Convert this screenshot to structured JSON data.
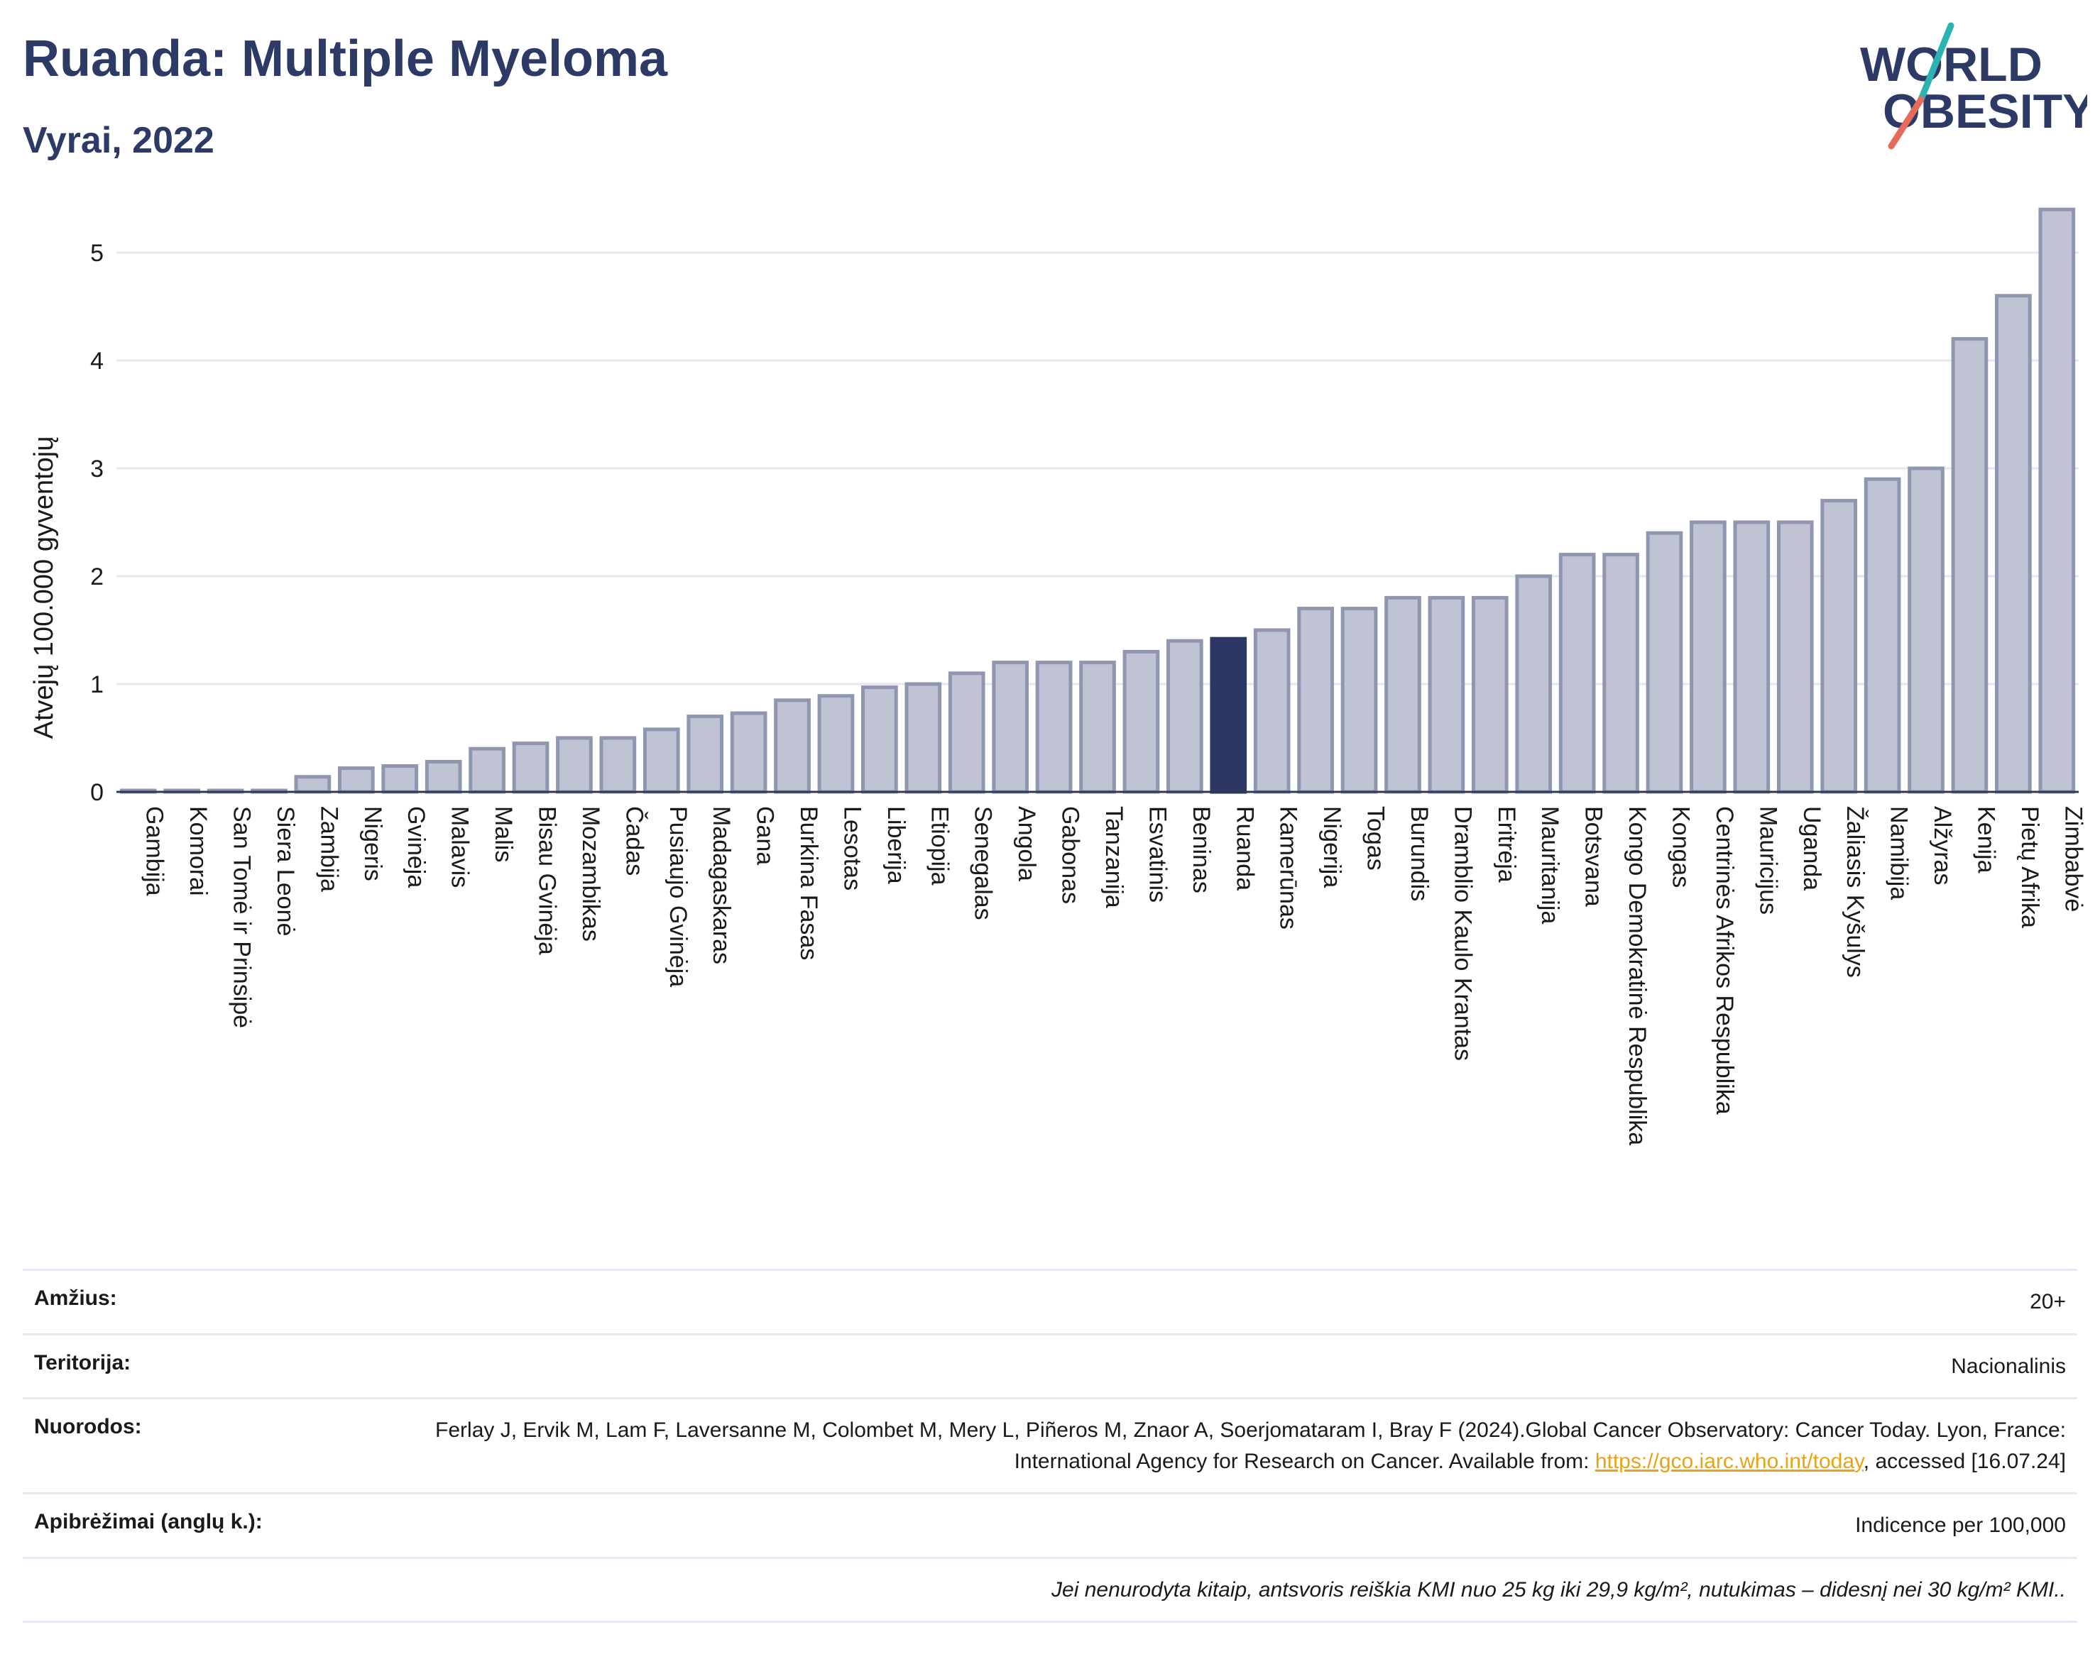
{
  "header": {
    "title": "Ruanda: Multiple Myeloma",
    "subtitle": "Vyrai, 2022",
    "logo_line1": "WORLD",
    "logo_line2": "OBESITY"
  },
  "colors": {
    "bar": "#bfc3d3",
    "bar_stroke": "#8f96b0",
    "highlight": "#2c3763",
    "title": "#2e3a66",
    "link": "#e8a317"
  },
  "chart_data": {
    "type": "bar",
    "title": "Ruanda: Multiple Myeloma",
    "subtitle": "Vyrai, 2022",
    "xlabel": "",
    "ylabel": "Atvejų 100.000 gyventojų",
    "ylim": [
      0,
      5.5
    ],
    "yticks": [
      0,
      1,
      2,
      3,
      4,
      5
    ],
    "grid": true,
    "highlight": "Ruanda",
    "categories": [
      "Gambija",
      "Komorai",
      "San Tomė ir Prinsipė",
      "Siera Leonė",
      "Zambija",
      "Nigeris",
      "Gvinėja",
      "Malavis",
      "Malis",
      "Bisau Gvinėja",
      "Mozambikas",
      "Čadas",
      "Pusiaujo Gvinėja",
      "Madagaskaras",
      "Gana",
      "Burkina Fasas",
      "Lesotas",
      "Liberija",
      "Etiopija",
      "Senegalas",
      "Angola",
      "Gabonas",
      "Tanzanija",
      "Esvatinis",
      "Beninas",
      "Ruanda",
      "Kamerūnas",
      "Nigerija",
      "Togas",
      "Burundis",
      "Dramblio Kaulo Krantas",
      "Eritrėja",
      "Mauritanija",
      "Botsvana",
      "Kongo Demokratinė Respublika",
      "Kongas",
      "Centrinės Afrikos Respublika",
      "Mauricijus",
      "Uganda",
      "Žaliasis Kyšulys",
      "Namibija",
      "Alžyras",
      "Kenija",
      "Pietų Afrika",
      "Zimbabvė"
    ],
    "values": [
      0.01,
      0.01,
      0.01,
      0.01,
      0.14,
      0.22,
      0.24,
      0.28,
      0.4,
      0.45,
      0.5,
      0.5,
      0.58,
      0.7,
      0.73,
      0.85,
      0.89,
      0.97,
      1.0,
      1.1,
      1.2,
      1.2,
      1.2,
      1.3,
      1.4,
      1.42,
      1.5,
      1.7,
      1.7,
      1.8,
      1.8,
      1.8,
      2.0,
      2.2,
      2.2,
      2.4,
      2.5,
      2.5,
      2.5,
      2.7,
      2.9,
      3.0,
      4.2,
      4.6,
      5.4
    ]
  },
  "info": {
    "age_label": "Amžius:",
    "age_value": "20+",
    "territory_label": "Teritorija:",
    "territory_value": "Nacionalinis",
    "refs_label": "Nuorodos:",
    "refs_text_1": "Ferlay J, Ervik M, Lam F, Laversanne M, Colombet M, Mery L, Piñeros M, Znaor A, Soerjomataram I, Bray F (2024).Global Cancer Observatory: Cancer Today. Lyon, France: International Agency for Research on Cancer. Available from: ",
    "refs_link": "https://gco.iarc.who.int/today",
    "refs_text_2": ", accessed [16.07.24]",
    "defs_label": "Apibrėžimai (anglų k.):",
    "defs_value": "Indicence per 100,000",
    "note": "Jei nenurodyta kitaip, antsvoris reiškia KMI nuo 25 kg iki 29,9 kg/m², nutukimas – didesnį nei 30 kg/m² KMI.."
  }
}
